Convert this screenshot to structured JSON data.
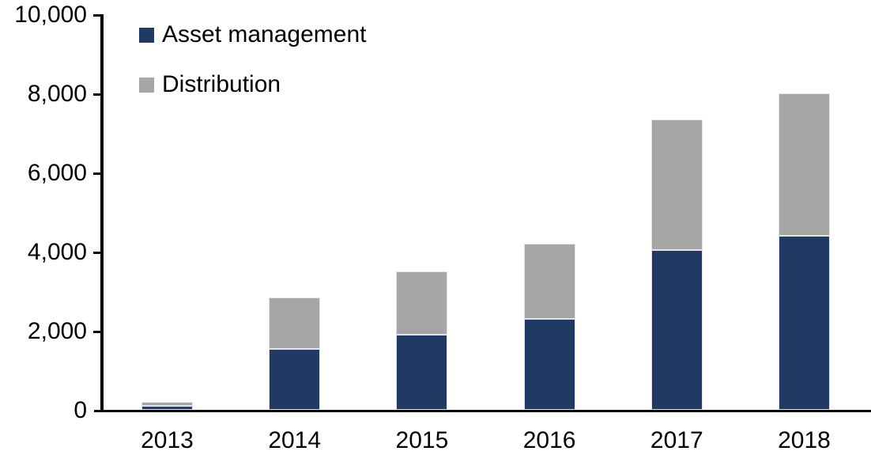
{
  "chart_data": {
    "type": "bar",
    "stacked": true,
    "title": "",
    "xlabel": "",
    "ylabel": "",
    "categories": [
      "2013",
      "2014",
      "2015",
      "2016",
      "2017",
      "2018"
    ],
    "series": [
      {
        "name": "Asset management",
        "color": "#203A64",
        "values": [
          100,
          1550,
          1900,
          2300,
          4050,
          4400
        ]
      },
      {
        "name": "Distribution",
        "color": "#A6A6A6",
        "values": [
          100,
          1300,
          1600,
          1900,
          3300,
          3600
        ]
      }
    ],
    "totals": [
      200,
      2850,
      3500,
      4200,
      7350,
      8000
    ],
    "ylim": [
      0,
      10000
    ],
    "y_ticks": [
      0,
      2000,
      4000,
      6000,
      8000,
      10000
    ],
    "y_tick_labels": [
      "0",
      "2,000",
      "4,000",
      "6,000",
      "8,000",
      "10,000"
    ],
    "grid": false,
    "legend_position": "top-left",
    "axis_color": "#000000",
    "background_color": "#FFFFFF"
  }
}
